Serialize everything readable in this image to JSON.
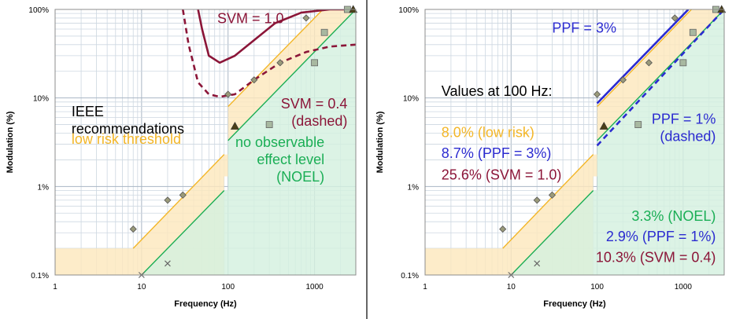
{
  "colors": {
    "ieee": "#f3b628",
    "ieee_fill": "#fde8bd",
    "noel": "#1aae55",
    "noel_fill": "#d4f0df",
    "svm": "#8b1538",
    "ppf": "#2b2bd0",
    "text_black": "#000000"
  },
  "chart_data": [
    {
      "type": "line",
      "xlabel": "Frequency (Hz)",
      "ylabel": "Modulation (%)",
      "xscale": "log",
      "yscale": "log",
      "xlim": [
        1,
        3000
      ],
      "ylim": [
        0.1,
        100
      ],
      "x_ticks": [
        {
          "v": 1,
          "label": "1"
        },
        {
          "v": 10,
          "label": "10"
        },
        {
          "v": 100,
          "label": "100"
        },
        {
          "v": 1000,
          "label": "1000"
        }
      ],
      "y_ticks": [
        {
          "v": 0.1,
          "label": "0.1%"
        },
        {
          "v": 1,
          "label": "1%"
        },
        {
          "v": 10,
          "label": "10%"
        },
        {
          "v": 100,
          "label": "100%"
        }
      ],
      "grid": true,
      "regions": [
        {
          "name": "low risk",
          "color_key": "ieee",
          "lower": [
            [
              1,
              0.1
            ],
            [
              90,
              0.1
            ],
            [
              90,
              1.3
            ],
            [
              100,
              1.3
            ],
            [
              100,
              3.3
            ],
            [
              3000,
              100
            ]
          ],
          "upper": [
            [
              1,
              0.2
            ],
            [
              8,
              0.2
            ],
            [
              90,
              2.3
            ],
            [
              100,
              2.3
            ],
            [
              100,
              8.0
            ],
            [
              1250,
              100
            ],
            [
              3000,
              100
            ]
          ]
        },
        {
          "name": "NOEL",
          "color_key": "noel",
          "lower": [
            [
              10,
              0.1
            ],
            [
              3000,
              0.1
            ]
          ],
          "upper": [
            [
              10,
              0.1
            ],
            [
              90,
              0.9
            ],
            [
              100,
              0.9
            ],
            [
              100,
              3.3
            ],
            [
              3000,
              100
            ]
          ]
        }
      ],
      "series": [
        {
          "key": "ieee",
          "style": "solid",
          "color_key": "ieee",
          "segments": [
            [
              [
                8,
                0.2
              ],
              [
                90,
                2.3
              ]
            ],
            [
              [
                100,
                8.0
              ],
              [
                1250,
                100
              ]
            ]
          ]
        },
        {
          "key": "noel",
          "style": "solid",
          "color_key": "noel",
          "segments": [
            [
              [
                10,
                0.1
              ],
              [
                90,
                0.9
              ]
            ],
            [
              [
                100,
                3.3
              ],
              [
                3000,
                100
              ]
            ]
          ]
        },
        {
          "key": "svm1",
          "style": "solid",
          "color_key": "svm",
          "points": [
            [
              45,
              100
            ],
            [
              50,
              60
            ],
            [
              60,
              30
            ],
            [
              80,
              25
            ],
            [
              120,
              30
            ],
            [
              200,
              45
            ],
            [
              350,
              70
            ],
            [
              700,
              92
            ],
            [
              1500,
              100
            ],
            [
              3000,
              100
            ]
          ]
        },
        {
          "key": "svm04",
          "style": "dashed",
          "color_key": "svm",
          "points": [
            [
              30,
              100
            ],
            [
              35,
              40
            ],
            [
              45,
              15
            ],
            [
              60,
              11
            ],
            [
              80,
              10.3
            ],
            [
              120,
              11
            ],
            [
              200,
              16
            ],
            [
              400,
              25
            ],
            [
              800,
              33
            ],
            [
              1500,
              38
            ],
            [
              3000,
              40
            ]
          ]
        }
      ],
      "markers": [
        {
          "shape": "diamond",
          "points": [
            [
              8,
              0.33
            ],
            [
              20,
              0.7
            ],
            [
              30,
              0.8
            ],
            [
              100,
              11
            ],
            [
              200,
              16
            ],
            [
              400,
              25
            ],
            [
              800,
              80
            ]
          ]
        },
        {
          "shape": "square",
          "points": [
            [
              300,
              5
            ],
            [
              1000,
              25
            ],
            [
              1300,
              55
            ],
            [
              2400,
              100
            ]
          ]
        },
        {
          "shape": "triangle",
          "points": [
            [
              120,
              4.8
            ],
            [
              2800,
              100
            ]
          ]
        },
        {
          "shape": "x",
          "points": [
            [
              10,
              0.1
            ],
            [
              20,
              0.135
            ]
          ]
        }
      ],
      "annotations": [
        {
          "lines": [
            "SVM = 1.0"
          ],
          "color_key": "svm",
          "anchor": "start",
          "at": [
            75,
            70
          ]
        },
        {
          "lines": [
            "SVM = 0.4",
            "(dashed)"
          ],
          "color_key": "svm",
          "anchor": "end",
          "at": [
            2400,
            7.6
          ]
        },
        {
          "lines": [
            "IEEE",
            "recommendations"
          ],
          "color_key": "text_black",
          "anchor": "start",
          "at": [
            1.55,
            6.2
          ]
        },
        {
          "lines": [
            "low risk threshold"
          ],
          "color_key": "ieee",
          "anchor": "start",
          "at": [
            1.55,
            3.05
          ]
        },
        {
          "lines": [
            "no observable",
            "effect level",
            "(NOEL)"
          ],
          "color_key": "noel",
          "anchor": "end",
          "at": [
            1300,
            2.8
          ]
        }
      ]
    },
    {
      "type": "line",
      "xlabel": "Frequency (Hz)",
      "ylabel": "Modulation (%)",
      "xscale": "log",
      "yscale": "log",
      "xlim": [
        1,
        3000
      ],
      "ylim": [
        0.1,
        100
      ],
      "x_ticks": [
        {
          "v": 1,
          "label": "1"
        },
        {
          "v": 10,
          "label": "10"
        },
        {
          "v": 100,
          "label": "100"
        },
        {
          "v": 1000,
          "label": "1000"
        }
      ],
      "y_ticks": [
        {
          "v": 0.1,
          "label": "0.1%"
        },
        {
          "v": 1,
          "label": "1%"
        },
        {
          "v": 10,
          "label": "10%"
        },
        {
          "v": 100,
          "label": "100%"
        }
      ],
      "grid": true,
      "regions": [
        {
          "name": "low risk",
          "color_key": "ieee",
          "lower": [
            [
              1,
              0.1
            ],
            [
              90,
              0.1
            ],
            [
              90,
              1.3
            ],
            [
              100,
              1.3
            ],
            [
              100,
              3.3
            ],
            [
              3000,
              100
            ]
          ],
          "upper": [
            [
              1,
              0.2
            ],
            [
              8,
              0.2
            ],
            [
              90,
              2.3
            ],
            [
              100,
              2.3
            ],
            [
              100,
              8.0
            ],
            [
              1250,
              100
            ],
            [
              3000,
              100
            ]
          ]
        },
        {
          "name": "NOEL",
          "color_key": "noel",
          "lower": [
            [
              10,
              0.1
            ],
            [
              3000,
              0.1
            ]
          ],
          "upper": [
            [
              10,
              0.1
            ],
            [
              90,
              0.9
            ],
            [
              100,
              0.9
            ],
            [
              100,
              3.3
            ],
            [
              3000,
              100
            ]
          ]
        }
      ],
      "series": [
        {
          "key": "ieee",
          "style": "solid",
          "color_key": "ieee",
          "segments": [
            [
              [
                8,
                0.2
              ],
              [
                90,
                2.3
              ]
            ],
            [
              [
                100,
                8.0
              ],
              [
                1250,
                100
              ]
            ]
          ]
        },
        {
          "key": "noel",
          "style": "solid",
          "color_key": "noel",
          "segments": [
            [
              [
                10,
                0.1
              ],
              [
                90,
                0.9
              ]
            ],
            [
              [
                100,
                3.3
              ],
              [
                3000,
                100
              ]
            ]
          ]
        },
        {
          "key": "ppf3",
          "style": "solid",
          "color_key": "ppf",
          "segments": [
            [
              [
                100,
                8.7
              ],
              [
                1150,
                100
              ]
            ]
          ]
        },
        {
          "key": "ppf1",
          "style": "dashed",
          "color_key": "ppf",
          "segments": [
            [
              [
                100,
                2.9
              ],
              [
                3000,
                100
              ]
            ]
          ]
        }
      ],
      "markers": [
        {
          "shape": "diamond",
          "points": [
            [
              8,
              0.33
            ],
            [
              20,
              0.7
            ],
            [
              30,
              0.8
            ],
            [
              100,
              11
            ],
            [
              200,
              16
            ],
            [
              400,
              25
            ],
            [
              800,
              80
            ]
          ]
        },
        {
          "shape": "square",
          "points": [
            [
              300,
              5
            ],
            [
              1000,
              25
            ],
            [
              1300,
              55
            ],
            [
              2400,
              100
            ]
          ]
        },
        {
          "shape": "triangle",
          "points": [
            [
              120,
              4.8
            ],
            [
              2800,
              100
            ]
          ]
        },
        {
          "shape": "x",
          "points": [
            [
              10,
              0.1
            ],
            [
              20,
              0.135
            ]
          ]
        }
      ],
      "annotations": [
        {
          "lines": [
            "PPF = 3%"
          ],
          "color_key": "ppf",
          "anchor": "start",
          "at": [
            30,
            55
          ]
        },
        {
          "lines": [
            "Values at 100 Hz:"
          ],
          "color_key": "text_black",
          "anchor": "start",
          "at": [
            1.55,
            10.6
          ]
        },
        {
          "lines": [
            "8.0% (low risk)"
          ],
          "color_key": "ieee",
          "anchor": "start",
          "at": [
            1.55,
            3.6
          ]
        },
        {
          "lines": [
            "8.7% (PPF = 3%)"
          ],
          "color_key": "ppf",
          "anchor": "start",
          "at": [
            1.55,
            2.1
          ]
        },
        {
          "lines": [
            "25.6% (SVM = 1.0)"
          ],
          "color_key": "svm",
          "anchor": "start",
          "at": [
            1.55,
            1.2
          ]
        },
        {
          "lines": [
            "PPF = 1%",
            "(dashed)"
          ],
          "color_key": "ppf",
          "anchor": "end",
          "at": [
            2400,
            5.1
          ]
        },
        {
          "lines": [
            "3.3% (NOEL)"
          ],
          "color_key": "noel",
          "anchor": "end",
          "at": [
            2400,
            0.41
          ]
        },
        {
          "lines": [
            "2.9% (PPF = 1%)"
          ],
          "color_key": "ppf",
          "anchor": "end",
          "at": [
            2400,
            0.24
          ]
        },
        {
          "lines": [
            "10.3% (SVM = 0.4)"
          ],
          "color_key": "svm",
          "anchor": "end",
          "at": [
            2400,
            0.14
          ]
        }
      ]
    }
  ]
}
